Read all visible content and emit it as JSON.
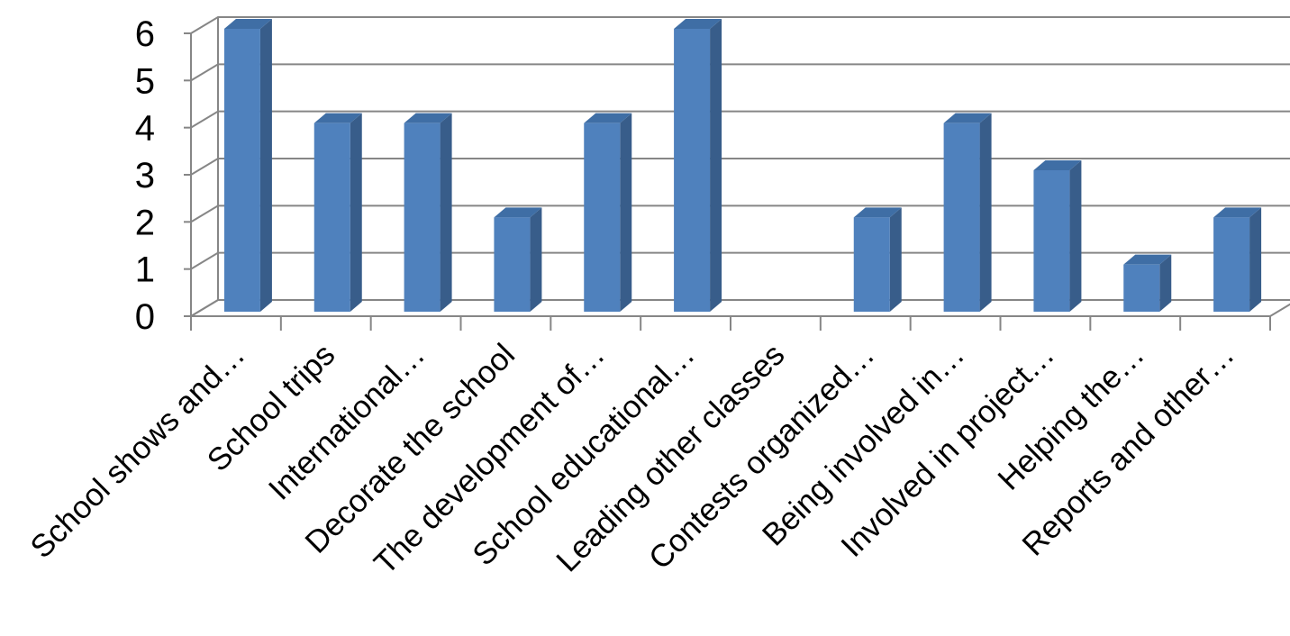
{
  "chart_data": {
    "type": "bar",
    "style": "3d-clustered-column",
    "title": "",
    "xlabel": "",
    "ylabel": "",
    "ylim": [
      0,
      6
    ],
    "y_ticks": [
      "0",
      "1",
      "2",
      "3",
      "4",
      "5",
      "6"
    ],
    "grid": true,
    "legend": "none",
    "categories": [
      "School shows and…",
      "School trips",
      "International…",
      "Decorate the school",
      "The development of…",
      "School educational…",
      "Leading other classes",
      "Contests organized…",
      "Being involved in…",
      "Involved in project…",
      "Helping the…",
      "Reports and other…"
    ],
    "values": [
      6,
      4,
      4,
      2,
      4,
      6,
      0,
      2,
      4,
      3,
      1,
      2
    ],
    "colors": {
      "bar_front": "#4f81bd",
      "bar_side": "#385d8a",
      "bar_top": "#3f6ea5",
      "grid": "#868686"
    }
  }
}
